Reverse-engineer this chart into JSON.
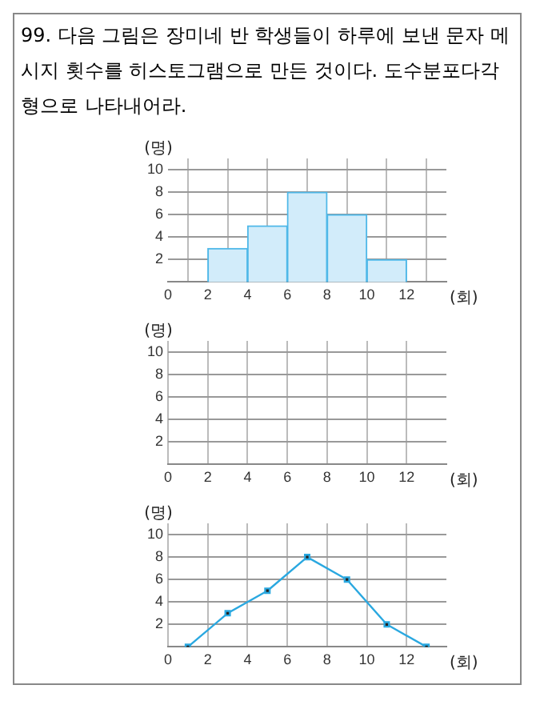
{
  "chart_data": [
    {
      "type": "histogram",
      "title": "99. 다음 그림은 장미네 반 학생들이 하루에 보낸 문자 메시지 횟수를 히스토그램으로 만든 것이다. 도수분포다각형으로 나타내어라.",
      "xlabel": "(회)",
      "ylabel": "(명)",
      "bins": [
        2,
        4,
        6,
        8,
        10,
        12
      ],
      "values": [
        3,
        5,
        8,
        6,
        2
      ],
      "color": "#d2ecfa",
      "xlim": [
        0,
        14
      ],
      "ylim": [
        0,
        11
      ],
      "xticks": [
        0,
        2,
        4,
        6,
        8,
        10,
        12
      ],
      "yticks": [
        2,
        4,
        6,
        8,
        10
      ],
      "grid": true
    },
    {
      "type": "line",
      "xlabel": "(회)",
      "ylabel": "(명)",
      "xlim": [
        0,
        14
      ],
      "ylim": [
        0,
        11
      ],
      "xticks": [
        0,
        2,
        4,
        6,
        8,
        10,
        12
      ],
      "yticks": [
        2,
        4,
        6,
        8,
        10
      ],
      "grid": true
    },
    {
      "type": "line",
      "xlabel": "(회)",
      "ylabel": "(명)",
      "x": [
        1,
        3,
        5,
        7,
        9,
        11,
        13
      ],
      "values": [
        0,
        3,
        5,
        8,
        6,
        2,
        0
      ],
      "color": "#2aa8e0",
      "marker": "square",
      "xlim": [
        0,
        14
      ],
      "ylim": [
        0,
        11
      ],
      "xticks": [
        0,
        2,
        4,
        6,
        8,
        10,
        12
      ],
      "yticks": [
        2,
        4,
        6,
        8,
        10
      ],
      "grid": true
    }
  ]
}
